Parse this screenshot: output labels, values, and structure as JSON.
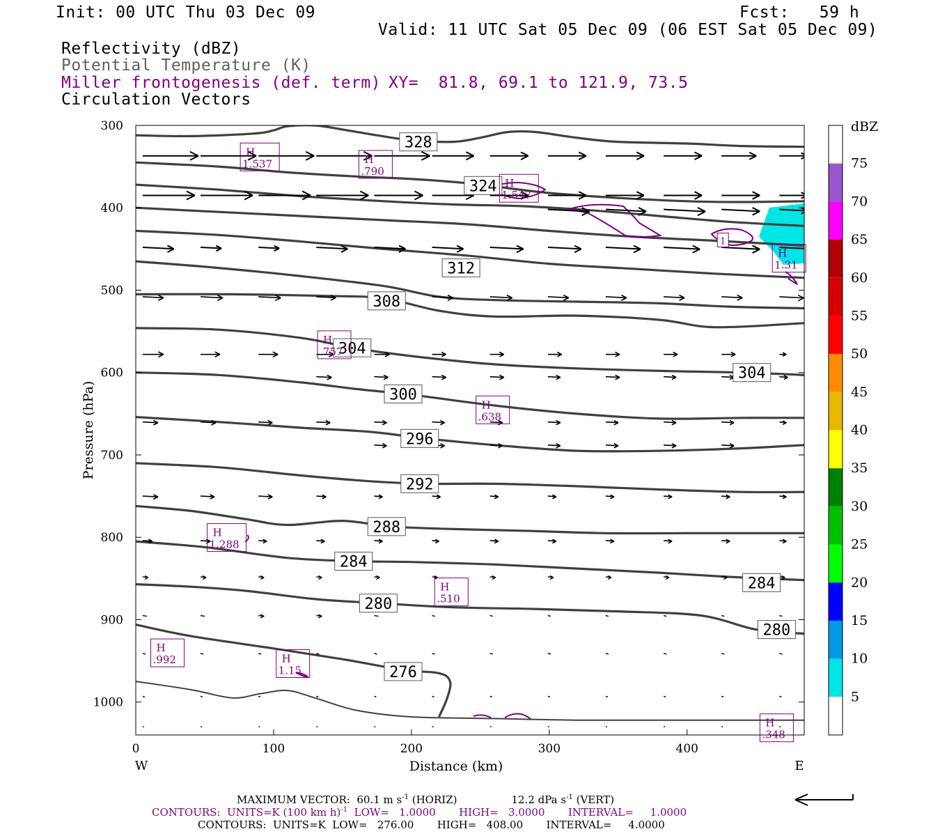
{
  "header": {
    "init": "Init: 00 UTC Thu 03 Dec 09",
    "fcst": "Fcst:   59 h",
    "valid": "Valid: 11 UTC Sat 05 Dec 09 (06 EST Sat 05 Dec 09)",
    "fields": [
      "Reflectivity (dBZ)",
      "Potential Temperature (K)",
      "Miller frontogenesis (def. term)",
      "Circulation Vectors"
    ],
    "xy": "XY=  81.8, 69.1 to 121.9, 73.5"
  },
  "colors": {
    "theta": "#404040",
    "fronto": "#800080",
    "vector": "#000000",
    "refl_5": "#00e5e5"
  },
  "chart_data": {
    "type": "line",
    "title": "",
    "xlabel": "Distance (km)",
    "ylabel": "Pressure (hPa)",
    "x_ticks": [
      "0",
      "100",
      "200",
      "300",
      "400"
    ],
    "y_ticks": [
      "300",
      "400",
      "500",
      "600",
      "700",
      "800",
      "900",
      "1000"
    ],
    "xlim": [
      0,
      485
    ],
    "ylim": [
      1040,
      300
    ],
    "west_label": "W",
    "east_label": "E",
    "theta_contours": [
      {
        "label": "328",
        "label_at": [
          205,
          320
        ],
        "points": [
          [
            0,
            312
          ],
          [
            40,
            313
          ],
          [
            85,
            310
          ],
          [
            100,
            306
          ],
          [
            110,
            301
          ],
          [
            130,
            300
          ],
          [
            150,
            305
          ],
          [
            175,
            312
          ],
          [
            200,
            318
          ],
          [
            230,
            320
          ],
          [
            250,
            315
          ],
          [
            270,
            308
          ],
          [
            290,
            308
          ],
          [
            320,
            315
          ],
          [
            350,
            320
          ],
          [
            400,
            322
          ],
          [
            440,
            325
          ],
          [
            485,
            326
          ]
        ]
      },
      {
        "label": "324",
        "label_at": [
          252,
          373
        ],
        "points": [
          [
            0,
            345
          ],
          [
            60,
            350
          ],
          [
            110,
            357
          ],
          [
            160,
            362
          ],
          [
            200,
            365
          ],
          [
            240,
            370
          ],
          [
            260,
            374
          ],
          [
            300,
            382
          ],
          [
            350,
            388
          ],
          [
            400,
            392
          ],
          [
            440,
            393
          ],
          [
            485,
            392
          ]
        ]
      },
      {
        "label": "",
        "label_at": null,
        "points": [
          [
            0,
            372
          ],
          [
            60,
            378
          ],
          [
            120,
            386
          ],
          [
            180,
            392
          ],
          [
            230,
            396
          ],
          [
            280,
            398
          ],
          [
            330,
            403
          ],
          [
            380,
            410
          ],
          [
            430,
            417
          ],
          [
            485,
            422
          ]
        ]
      },
      {
        "label": "",
        "label_at": null,
        "points": [
          [
            0,
            400
          ],
          [
            60,
            405
          ],
          [
            120,
            410
          ],
          [
            180,
            415
          ],
          [
            240,
            420
          ],
          [
            300,
            428
          ],
          [
            360,
            435
          ],
          [
            420,
            440
          ],
          [
            485,
            446
          ]
        ]
      },
      {
        "label": "312",
        "label_at": [
          236,
          473
        ],
        "points": [
          [
            0,
            428
          ],
          [
            60,
            433
          ],
          [
            120,
            441
          ],
          [
            180,
            450
          ],
          [
            240,
            458
          ],
          [
            300,
            468
          ],
          [
            360,
            474
          ],
          [
            420,
            480
          ],
          [
            485,
            485
          ]
        ]
      },
      {
        "label": "",
        "label_at": null,
        "points": [
          [
            0,
            465
          ],
          [
            60,
            473
          ],
          [
            120,
            483
          ],
          [
            180,
            495
          ],
          [
            220,
            508
          ],
          [
            260,
            512
          ],
          [
            320,
            514
          ],
          [
            380,
            516
          ],
          [
            430,
            520
          ],
          [
            485,
            522
          ]
        ]
      },
      {
        "label": "308",
        "label_at": [
          182,
          513
        ],
        "points": [
          [
            0,
            505
          ],
          [
            70,
            505
          ],
          [
            140,
            507
          ],
          [
            180,
            510
          ],
          [
            220,
            525
          ],
          [
            260,
            532
          ],
          [
            320,
            531
          ],
          [
            380,
            536
          ],
          [
            420,
            545
          ],
          [
            485,
            540
          ]
        ]
      },
      {
        "label": "304",
        "label_at": [
          157,
          570
        ],
        "points": [
          [
            0,
            546
          ],
          [
            60,
            548
          ],
          [
            120,
            558
          ],
          [
            157,
            570
          ],
          [
            200,
            580
          ],
          [
            260,
            590
          ],
          [
            320,
            595
          ],
          [
            380,
            598
          ],
          [
            440,
            600
          ],
          [
            485,
            603
          ]
        ]
      },
      {
        "label": "304",
        "label_at": [
          447,
          600
        ],
        "points": []
      },
      {
        "label": "300",
        "label_at": [
          194,
          626
        ],
        "points": [
          [
            0,
            600
          ],
          [
            60,
            603
          ],
          [
            120,
            612
          ],
          [
            160,
            620
          ],
          [
            200,
            627
          ],
          [
            260,
            640
          ],
          [
            320,
            650
          ],
          [
            380,
            656
          ],
          [
            440,
            655
          ],
          [
            485,
            655
          ]
        ]
      },
      {
        "label": "296",
        "label_at": [
          206,
          680
        ],
        "points": [
          [
            0,
            654
          ],
          [
            60,
            660
          ],
          [
            120,
            667
          ],
          [
            170,
            672
          ],
          [
            210,
            680
          ],
          [
            260,
            688
          ],
          [
            320,
            695
          ],
          [
            380,
            695
          ],
          [
            440,
            692
          ],
          [
            485,
            688
          ]
        ]
      },
      {
        "label": "292",
        "label_at": [
          206,
          735
        ],
        "points": [
          [
            0,
            710
          ],
          [
            60,
            715
          ],
          [
            120,
            725
          ],
          [
            170,
            732
          ],
          [
            210,
            735
          ],
          [
            260,
            735
          ],
          [
            320,
            738
          ],
          [
            380,
            742
          ],
          [
            440,
            745
          ],
          [
            485,
            745
          ]
        ]
      },
      {
        "label": "288",
        "label_at": [
          182,
          787
        ],
        "points": [
          [
            0,
            762
          ],
          [
            40,
            768
          ],
          [
            80,
            778
          ],
          [
            110,
            785
          ],
          [
            150,
            780
          ],
          [
            185,
            787
          ],
          [
            230,
            790
          ],
          [
            280,
            792
          ],
          [
            340,
            795
          ],
          [
            400,
            795
          ],
          [
            440,
            795
          ],
          [
            485,
            795
          ]
        ]
      },
      {
        "label": "284",
        "label_at": [
          158,
          829
        ],
        "points": [
          [
            0,
            805
          ],
          [
            50,
            812
          ],
          [
            110,
            825
          ],
          [
            158,
            829
          ],
          [
            200,
            830
          ],
          [
            260,
            833
          ],
          [
            320,
            838
          ],
          [
            380,
            843
          ],
          [
            430,
            848
          ],
          [
            485,
            852
          ]
        ]
      },
      {
        "label": "284",
        "label_at": [
          454,
          855
        ],
        "points": []
      },
      {
        "label": "280",
        "label_at": [
          176,
          880
        ],
        "points": [
          [
            0,
            857
          ],
          [
            40,
            860
          ],
          [
            80,
            865
          ],
          [
            130,
            875
          ],
          [
            176,
            880
          ],
          [
            230,
            885
          ],
          [
            290,
            887
          ],
          [
            350,
            890
          ],
          [
            410,
            895
          ],
          [
            450,
            912
          ],
          [
            485,
            917
          ]
        ]
      },
      {
        "label": "280",
        "label_at": [
          465,
          912
        ],
        "points": []
      },
      {
        "label": "276",
        "label_at": [
          194,
          963
        ],
        "points": [
          [
            0,
            906
          ],
          [
            40,
            920
          ],
          [
            100,
            935
          ],
          [
            150,
            948
          ],
          [
            194,
            961
          ],
          [
            220,
            965
          ],
          [
            228,
            975
          ],
          [
            226,
            995
          ],
          [
            220,
            1018
          ]
        ]
      },
      {
        "label": "",
        "label_at": null,
        "thin": true,
        "points": [
          [
            0,
            975
          ],
          [
            40,
            985
          ],
          [
            70,
            995
          ],
          [
            90,
            990
          ],
          [
            110,
            986
          ],
          [
            130,
            995
          ],
          [
            160,
            1010
          ],
          [
            200,
            1018
          ],
          [
            260,
            1020
          ],
          [
            320,
            1022
          ],
          [
            400,
            1022
          ],
          [
            485,
            1022
          ]
        ]
      }
    ],
    "fronto_maxima": [
      {
        "label": "H",
        "value": "1.537",
        "at": [
          90,
          340
        ]
      },
      {
        "label": "H",
        "value": ".790",
        "at": [
          174,
          349
        ]
      },
      {
        "label": "H",
        "value": "1.547",
        "at": [
          278,
          378
        ]
      },
      {
        "label": "H",
        "value": "1.31",
        "at": [
          474,
          463
        ]
      },
      {
        "label": "H",
        "value": ".757",
        "at": [
          144,
          568
        ]
      },
      {
        "label": "H",
        "value": ".638",
        "at": [
          259,
          647
        ]
      },
      {
        "label": "H",
        "value": "1.288",
        "at": [
          66,
          802
        ]
      },
      {
        "label": "H",
        "value": ".510",
        "at": [
          229,
          868
        ]
      },
      {
        "label": "H",
        "value": ".992",
        "at": [
          23,
          942
        ]
      },
      {
        "label": "H",
        "value": "1.15",
        "at": [
          114,
          955
        ]
      },
      {
        "label": "H",
        "value": ".348",
        "at": [
          465,
          1033
        ]
      },
      {
        "label": "",
        "value": "1",
        "at": [
          426,
          440
        ]
      }
    ],
    "colorbar": {
      "title": "dBZ",
      "labels": [
        "75",
        "70",
        "65",
        "60",
        "55",
        "50",
        "45",
        "40",
        "35",
        "30",
        "25",
        "20",
        "15",
        "10",
        "5"
      ],
      "colors": [
        "#ffffff",
        "#9955cc",
        "#ff00ff",
        "#b30000",
        "#d60000",
        "#ff0000",
        "#ff8c00",
        "#e6b800",
        "#ffff00",
        "#008000",
        "#00c000",
        "#00ff00",
        "#0000ff",
        "#0099e6",
        "#00e5e5",
        "#ffffff"
      ]
    }
  },
  "footer": {
    "line1_a": "MAXIMUM VECTOR:  60.1 m s",
    "line1_sup": "-1",
    "line1_b": " (HORIZ)",
    "line1_c": "12.2 dPa s",
    "line1_sup2": "-1",
    "line1_d": " (VERT)",
    "line2_a": "CONTOURS:  UNITS=K (100 km h)",
    "line2_sup": "-1",
    "line2_b": "  LOW=   1.0000       HIGH=   3.0000       INTERVAL=     1.0000",
    "line3": "CONTOURS:  UNITS=K  LOW=   276.00       HIGH=   408.00       INTERVAL=     4.0000"
  }
}
